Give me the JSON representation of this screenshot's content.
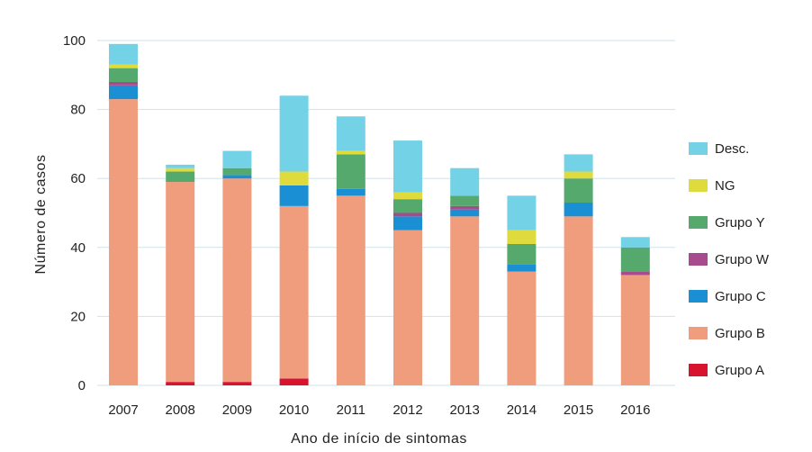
{
  "chart_data": {
    "type": "bar",
    "stacked": true,
    "title": "",
    "xlabel": "Ano de início de sintomas",
    "ylabel": "Número de casos",
    "ylim": [
      0,
      100
    ],
    "yticks": [
      0,
      20,
      40,
      60,
      80,
      100
    ],
    "grid": "horizontal",
    "legend_position": "right",
    "categories": [
      "2007",
      "2008",
      "2009",
      "2010",
      "2011",
      "2012",
      "2013",
      "2014",
      "2015",
      "2016"
    ],
    "series": [
      {
        "name": "Grupo A",
        "color": "#d7132e",
        "values": [
          0,
          1,
          1,
          2,
          0,
          0,
          0,
          0,
          0,
          0
        ]
      },
      {
        "name": "Grupo B",
        "color": "#f09d7d",
        "values": [
          83,
          58,
          59,
          50,
          55,
          45,
          49,
          33,
          49,
          32
        ]
      },
      {
        "name": "Grupo C",
        "color": "#1b8fd3",
        "values": [
          4,
          0,
          1,
          6,
          2,
          4,
          2,
          2,
          4,
          0
        ]
      },
      {
        "name": "Grupo W",
        "color": "#a84b8e",
        "values": [
          1,
          0,
          0,
          0,
          0,
          1,
          1,
          0,
          0,
          1
        ]
      },
      {
        "name": "Grupo Y",
        "color": "#55a96d",
        "values": [
          4,
          3,
          2,
          0,
          10,
          4,
          3,
          6,
          7,
          7
        ]
      },
      {
        "name": "NG",
        "color": "#dfdb3c",
        "values": [
          1,
          1,
          0,
          4,
          1,
          2,
          0,
          4,
          2,
          0
        ]
      },
      {
        "name": "Desc.",
        "color": "#74d2e6",
        "values": [
          6,
          1,
          5,
          22,
          10,
          15,
          8,
          10,
          5,
          3
        ]
      }
    ],
    "legend_order": [
      "Desc.",
      "NG",
      "Grupo Y",
      "Grupo W",
      "Grupo C",
      "Grupo B",
      "Grupo A"
    ]
  },
  "colors": {
    "grid": "#cfe3ea",
    "text": "#222222"
  }
}
